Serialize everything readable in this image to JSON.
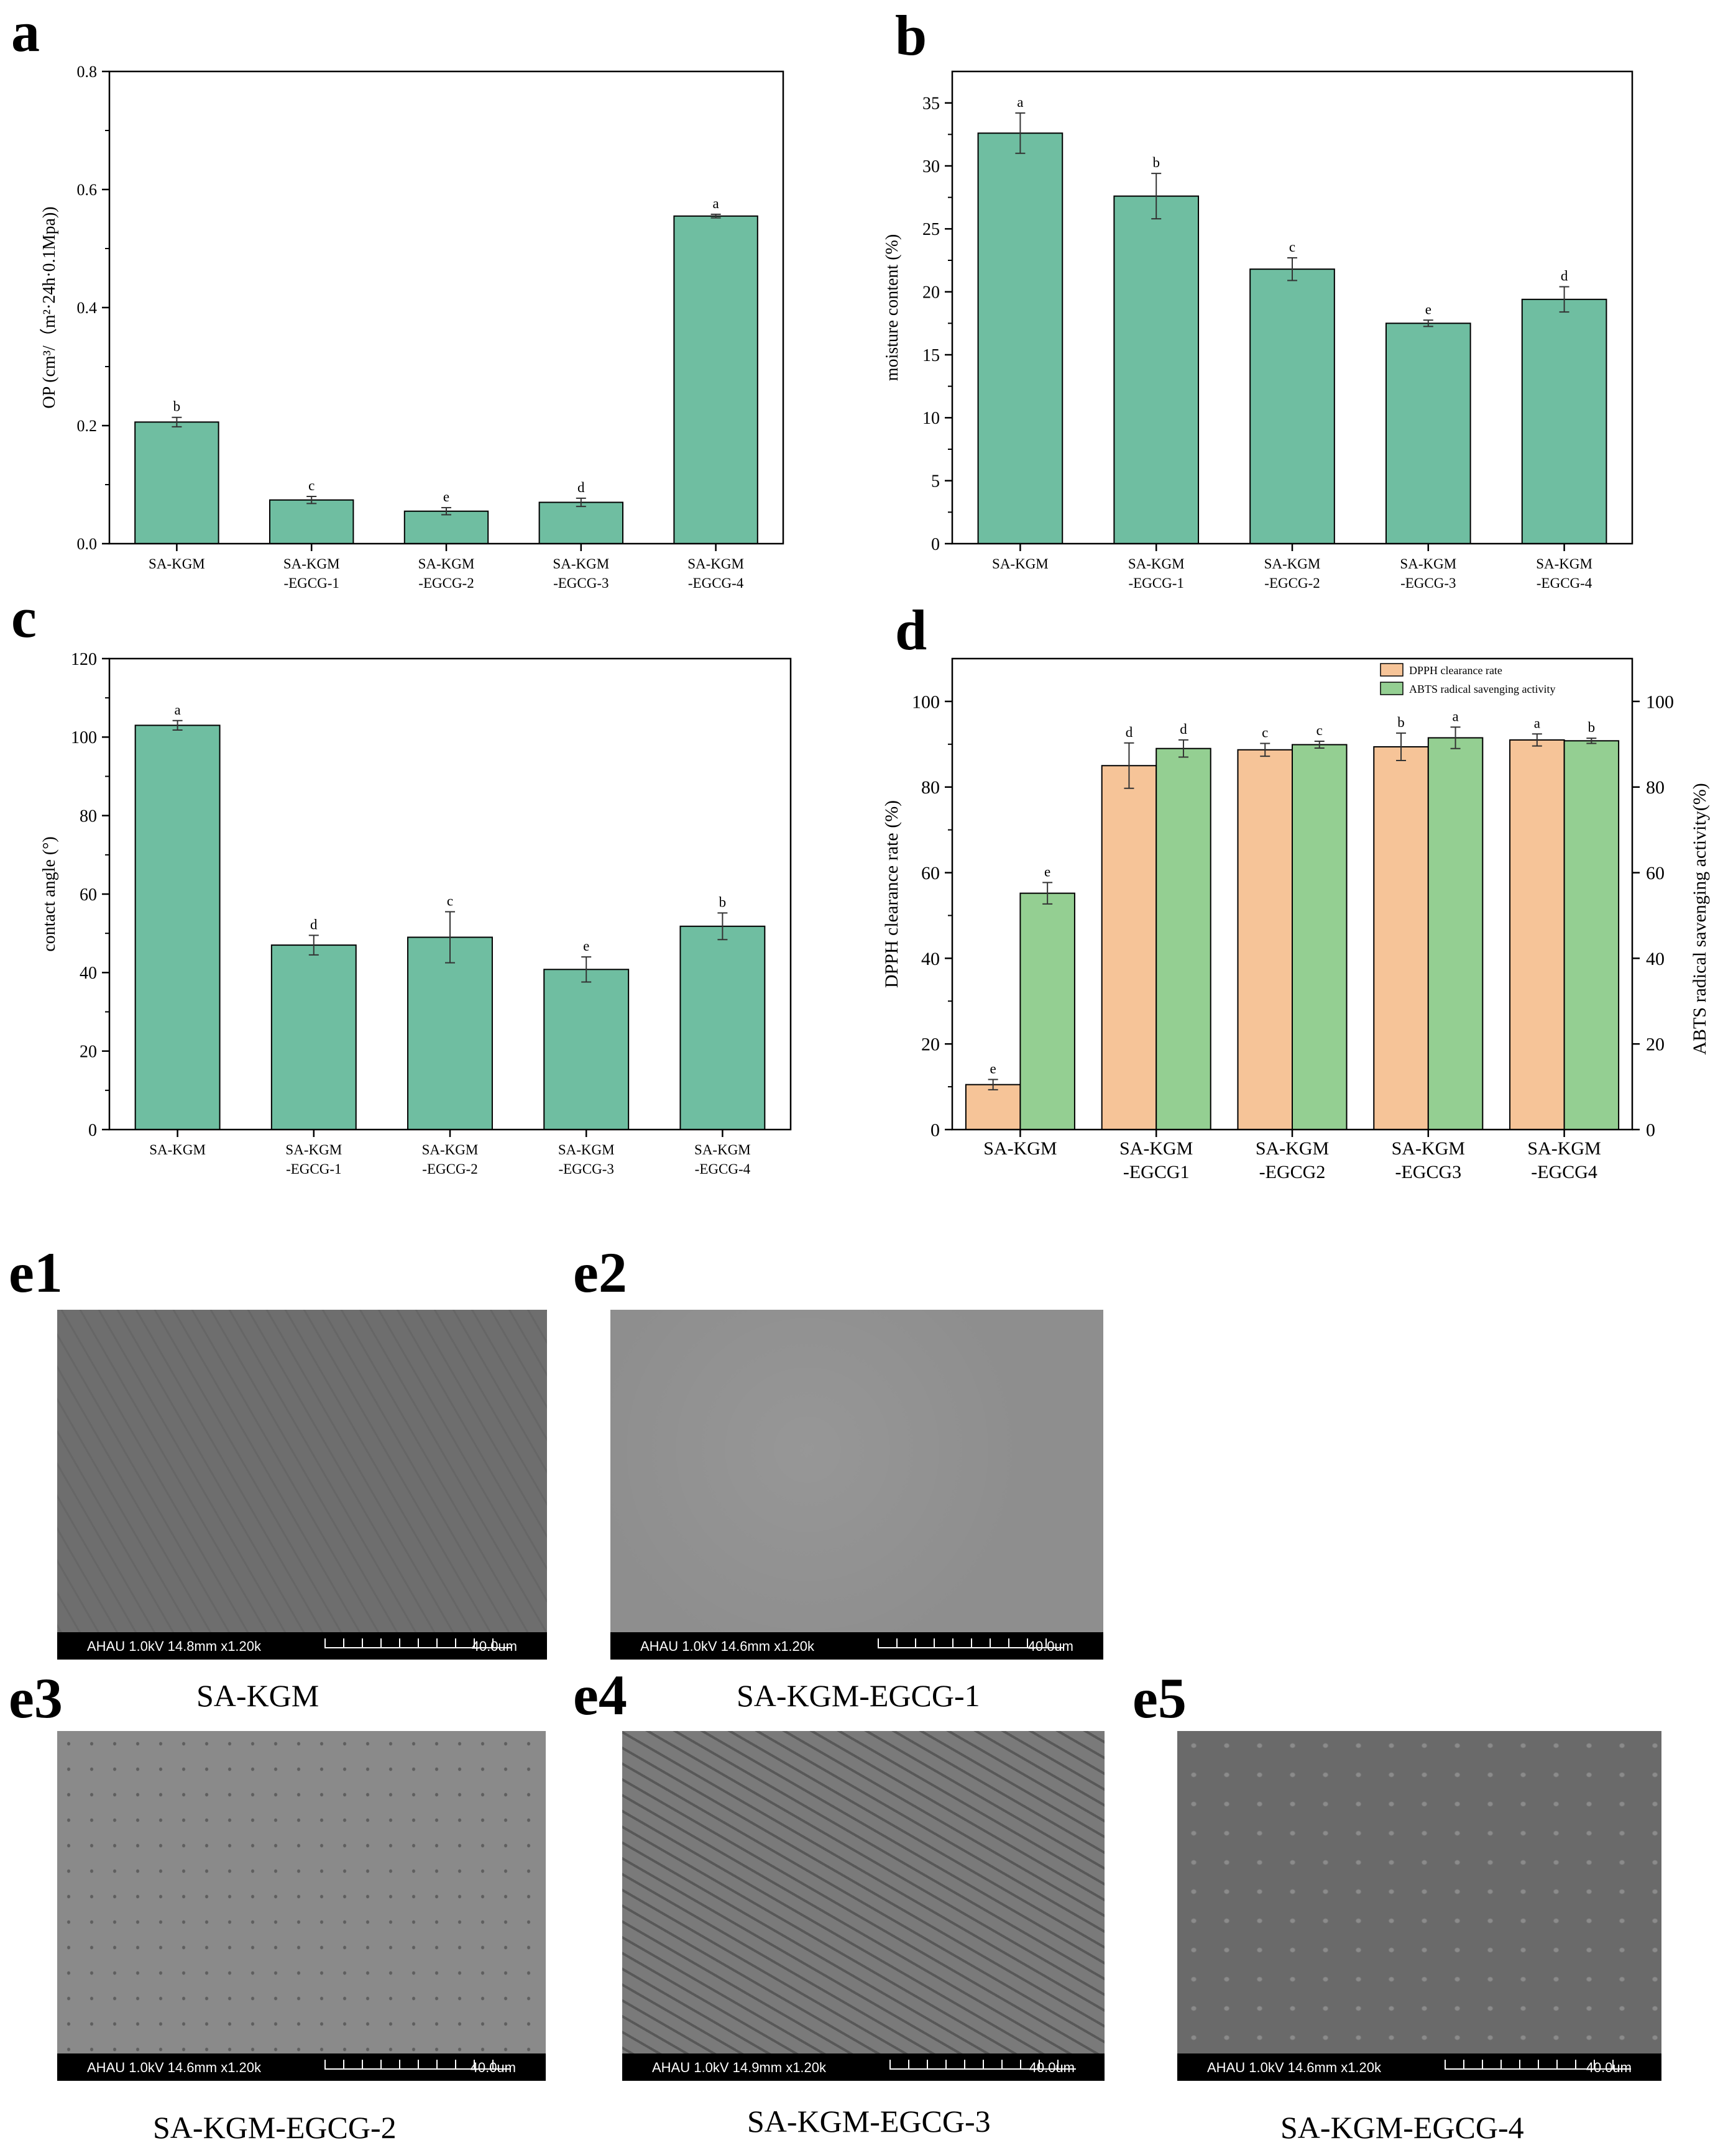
{
  "colors": {
    "bar_green": "#6fbea1",
    "bar_light_green": "#94cf92",
    "bar_orange": "#f6c498",
    "axis": "#000000",
    "sem_bg_e1": "#6e6e6e",
    "sem_bg_e2": "#8e8e8e",
    "sem_bg_e3": "#8a8a8a",
    "sem_bg_e4": "#7a7a7a",
    "sem_bg_e5": "#6a6a6a"
  },
  "chart_data": [
    {
      "panel": "a",
      "type": "bar",
      "title": "",
      "xlabel": "",
      "ylabel": "OP (cm³/（m²·24h·0.1Mpa))",
      "categories": [
        [
          "SA-KGM"
        ],
        [
          "SA-KGM",
          "-EGCG-1"
        ],
        [
          "SA-KGM",
          "-EGCG-2"
        ],
        [
          "SA-KGM",
          "-EGCG-3"
        ],
        [
          "SA-KGM",
          "-EGCG-4"
        ]
      ],
      "series": [
        {
          "name": "OP",
          "color": "bar_green",
          "values": [
            0.206,
            0.074,
            0.055,
            0.07,
            0.555
          ],
          "errors": [
            0.008,
            0.006,
            0.006,
            0.007,
            0.003
          ],
          "letters": [
            "b",
            "c",
            "e",
            "d",
            "a"
          ]
        }
      ],
      "ylim": [
        0,
        0.8
      ],
      "yticks": [
        0.0,
        0.2,
        0.4,
        0.6,
        0.8
      ],
      "ytick_labels": [
        "0.0",
        "0.2",
        "0.4",
        "0.6",
        "0.8"
      ]
    },
    {
      "panel": "b",
      "type": "bar",
      "title": "",
      "xlabel": "",
      "ylabel": "moisture content (%)",
      "categories": [
        [
          "SA-KGM"
        ],
        [
          "SA-KGM",
          "-EGCG-1"
        ],
        [
          "SA-KGM",
          "-EGCG-2"
        ],
        [
          "SA-KGM",
          "-EGCG-3"
        ],
        [
          "SA-KGM",
          "-EGCG-4"
        ]
      ],
      "series": [
        {
          "name": "moisture content",
          "color": "bar_green",
          "values": [
            32.6,
            27.6,
            21.8,
            17.5,
            19.4
          ],
          "errors": [
            1.6,
            1.8,
            0.9,
            0.25,
            1.0
          ],
          "letters": [
            "a",
            "b",
            "c",
            "e",
            "d"
          ]
        }
      ],
      "ylim": [
        0,
        37.5
      ],
      "yticks": [
        0,
        5,
        10,
        15,
        20,
        25,
        30,
        35
      ],
      "ytick_labels": [
        "0",
        "5",
        "10",
        "15",
        "20",
        "25",
        "30",
        "35"
      ]
    },
    {
      "panel": "c",
      "type": "bar",
      "title": "",
      "xlabel": "",
      "ylabel": "contact angle (°)",
      "categories": [
        [
          "SA-KGM"
        ],
        [
          "SA-KGM",
          "-EGCG-1"
        ],
        [
          "SA-KGM",
          "-EGCG-2"
        ],
        [
          "SA-KGM",
          "-EGCG-3"
        ],
        [
          "SA-KGM",
          "-EGCG-4"
        ]
      ],
      "series": [
        {
          "name": "contact angle",
          "color": "bar_green",
          "values": [
            103,
            47,
            49,
            40.8,
            51.8
          ],
          "errors": [
            1.2,
            2.5,
            6.5,
            3.2,
            3.4
          ],
          "letters": [
            "a",
            "d",
            "c",
            "e",
            "b"
          ]
        }
      ],
      "ylim": [
        0,
        120
      ],
      "yticks": [
        0,
        20,
        40,
        60,
        80,
        100,
        120
      ],
      "ytick_labels": [
        "0",
        "20",
        "40",
        "60",
        "80",
        "100",
        "120"
      ]
    },
    {
      "panel": "d",
      "type": "bar",
      "title": "",
      "xlabel": "",
      "ylabel": "DPPH clearance rate (%)",
      "ylabel_right": "ABTS radical savenging activity(%)",
      "categories": [
        [
          "SA-KGM"
        ],
        [
          "SA-KGM",
          "-EGCG1"
        ],
        [
          "SA-KGM",
          "-EGCG2"
        ],
        [
          "SA-KGM",
          "-EGCG3"
        ],
        [
          "SA-KGM",
          "-EGCG4"
        ]
      ],
      "series": [
        {
          "name": "DPPH clearance rate",
          "color": "bar_orange",
          "values": [
            10.5,
            85,
            88.7,
            89.4,
            91
          ],
          "errors": [
            1.2,
            5.3,
            1.5,
            3.2,
            1.4
          ],
          "letters": [
            "e",
            "d",
            "c",
            "b",
            "a"
          ]
        },
        {
          "name": "ABTS radical savenging activity",
          "color": "bar_light_green",
          "values": [
            55.2,
            89,
            89.9,
            91.5,
            90.8
          ],
          "errors": [
            2.5,
            2.0,
            0.8,
            2.5,
            0.6
          ],
          "letters": [
            "e",
            "d",
            "c",
            "a",
            "b"
          ]
        }
      ],
      "ylim": [
        0,
        110
      ],
      "yticks": [
        0,
        20,
        40,
        60,
        80,
        100
      ],
      "ytick_labels": [
        "0",
        "20",
        "40",
        "60",
        "80",
        "100"
      ],
      "legend_position": "top-right"
    }
  ],
  "sem_images": [
    {
      "id": "e1",
      "caption": "SA-KGM",
      "info": "AHAU 1.0kV 14.8mm x1.20k",
      "scale": "40.0um",
      "bg": "sem_bg_e1"
    },
    {
      "id": "e2",
      "caption": "SA-KGM-EGCG-1",
      "info": "AHAU 1.0kV 14.6mm x1.20k",
      "scale": "40.0um",
      "bg": "sem_bg_e2"
    },
    {
      "id": "e3",
      "caption": "SA-KGM-EGCG-2",
      "info": "AHAU 1.0kV 14.6mm x1.20k",
      "scale": "40.0um",
      "bg": "sem_bg_e3"
    },
    {
      "id": "e4",
      "caption": "SA-KGM-EGCG-3",
      "info": "AHAU 1.0kV 14.9mm x1.20k",
      "scale": "40.0um",
      "bg": "sem_bg_e4"
    },
    {
      "id": "e5",
      "caption": "SA-KGM-EGCG-4",
      "info": "AHAU 1.0kV 14.6mm x1.20k",
      "scale": "40.0um",
      "bg": "sem_bg_e5"
    }
  ]
}
